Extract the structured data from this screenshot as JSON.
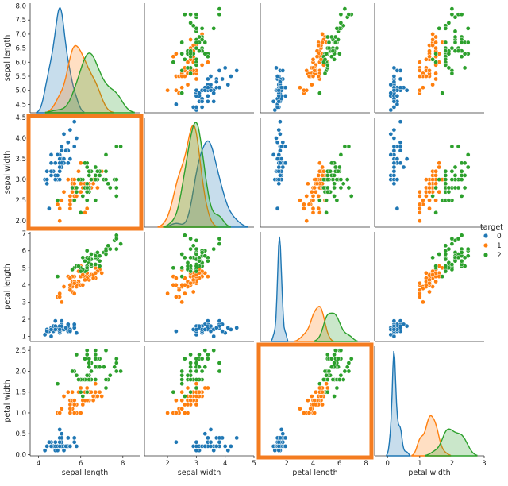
{
  "chart_data": {
    "type": "scatter",
    "subtype": "pairplot",
    "variables": [
      "sepal length",
      "sepal width",
      "petal length",
      "petal width"
    ],
    "diagonal": "kde",
    "legend": {
      "title": "target",
      "placement": "right",
      "entries": [
        {
          "label": "0",
          "color": "#1f77b4"
        },
        {
          "label": "1",
          "color": "#ff7f0e"
        },
        {
          "label": "2",
          "color": "#2ca02c"
        }
      ]
    },
    "axes": {
      "sepal length": {
        "range": [
          4.2,
          8.1
        ],
        "ticks": [
          "4.5",
          "5.0",
          "5.5",
          "6.0",
          "6.5",
          "7.0",
          "7.5",
          "8.0"
        ],
        "xticks": [
          "4",
          "6",
          "8"
        ],
        "xrange": [
          3.6,
          8.8
        ]
      },
      "sepal width": {
        "range": [
          1.85,
          4.5
        ],
        "ticks": [
          "2.0",
          "2.5",
          "3.0",
          "3.5",
          "4.0",
          "4.5"
        ],
        "xticks": [
          "2",
          "3",
          "4",
          "5"
        ],
        "xrange": [
          1.2,
          5.0
        ]
      },
      "petal length": {
        "range": [
          0.7,
          7.1
        ],
        "ticks": [
          "1",
          "2",
          "3",
          "4",
          "5",
          "6",
          "7"
        ],
        "xticks": [
          "2",
          "4",
          "6",
          "8"
        ],
        "xrange": [
          0.0,
          8.3
        ]
      },
      "petal width": {
        "range": [
          -0.03,
          2.6
        ],
        "ticks": [
          "0.0",
          "0.5",
          "1.0",
          "1.5",
          "2.0",
          "2.5"
        ],
        "xticks": [
          "0",
          "1",
          "2",
          "3"
        ],
        "xrange": [
          -0.4,
          3.0
        ]
      }
    },
    "highlighted_panels": [
      {
        "row": "sepal width",
        "col": "sepal length",
        "color": "#f47c20"
      },
      {
        "row": "petal width",
        "col": "petal length",
        "color": "#f47c20"
      }
    ],
    "series": [
      {
        "name": "0",
        "color": "#1f77b4",
        "points": [
          [
            5.1,
            3.5,
            1.4,
            0.2
          ],
          [
            4.9,
            3.0,
            1.4,
            0.2
          ],
          [
            4.7,
            3.2,
            1.3,
            0.2
          ],
          [
            4.6,
            3.1,
            1.5,
            0.2
          ],
          [
            5.0,
            3.6,
            1.4,
            0.2
          ],
          [
            5.4,
            3.9,
            1.7,
            0.4
          ],
          [
            4.6,
            3.4,
            1.4,
            0.3
          ],
          [
            5.0,
            3.4,
            1.5,
            0.2
          ],
          [
            4.4,
            2.9,
            1.4,
            0.2
          ],
          [
            4.9,
            3.1,
            1.5,
            0.1
          ],
          [
            5.4,
            3.7,
            1.5,
            0.2
          ],
          [
            4.8,
            3.4,
            1.6,
            0.2
          ],
          [
            4.8,
            3.0,
            1.4,
            0.1
          ],
          [
            4.3,
            3.0,
            1.1,
            0.1
          ],
          [
            5.8,
            4.0,
            1.2,
            0.2
          ],
          [
            5.7,
            4.4,
            1.5,
            0.4
          ],
          [
            5.4,
            3.9,
            1.3,
            0.4
          ],
          [
            5.1,
            3.5,
            1.4,
            0.3
          ],
          [
            5.7,
            3.8,
            1.7,
            0.3
          ],
          [
            5.1,
            3.8,
            1.5,
            0.3
          ],
          [
            5.4,
            3.4,
            1.7,
            0.2
          ],
          [
            5.1,
            3.7,
            1.5,
            0.4
          ],
          [
            4.6,
            3.6,
            1.0,
            0.2
          ],
          [
            5.1,
            3.3,
            1.7,
            0.5
          ],
          [
            4.8,
            3.4,
            1.9,
            0.2
          ],
          [
            5.0,
            3.0,
            1.6,
            0.2
          ],
          [
            5.0,
            3.4,
            1.6,
            0.4
          ],
          [
            5.2,
            3.5,
            1.5,
            0.2
          ],
          [
            5.2,
            3.4,
            1.4,
            0.2
          ],
          [
            4.7,
            3.2,
            1.6,
            0.2
          ],
          [
            4.8,
            3.1,
            1.6,
            0.2
          ],
          [
            5.4,
            3.4,
            1.5,
            0.4
          ],
          [
            5.2,
            4.1,
            1.5,
            0.1
          ],
          [
            5.5,
            4.2,
            1.4,
            0.2
          ],
          [
            4.9,
            3.1,
            1.5,
            0.2
          ],
          [
            5.0,
            3.2,
            1.2,
            0.2
          ],
          [
            5.5,
            3.5,
            1.3,
            0.2
          ],
          [
            4.9,
            3.6,
            1.4,
            0.1
          ],
          [
            4.4,
            3.0,
            1.3,
            0.2
          ],
          [
            5.1,
            3.4,
            1.5,
            0.2
          ],
          [
            5.0,
            3.5,
            1.3,
            0.3
          ],
          [
            4.5,
            2.3,
            1.3,
            0.3
          ],
          [
            4.4,
            3.2,
            1.3,
            0.2
          ],
          [
            5.0,
            3.5,
            1.6,
            0.6
          ],
          [
            5.1,
            3.8,
            1.9,
            0.4
          ],
          [
            4.8,
            3.0,
            1.4,
            0.3
          ],
          [
            5.1,
            3.8,
            1.6,
            0.2
          ],
          [
            4.6,
            3.2,
            1.4,
            0.2
          ],
          [
            5.3,
            3.7,
            1.5,
            0.2
          ],
          [
            5.0,
            3.3,
            1.4,
            0.2
          ]
        ]
      },
      {
        "name": "1",
        "color": "#ff7f0e",
        "points": [
          [
            7.0,
            3.2,
            4.7,
            1.4
          ],
          [
            6.4,
            3.2,
            4.5,
            1.5
          ],
          [
            6.9,
            3.1,
            4.9,
            1.5
          ],
          [
            5.5,
            2.3,
            4.0,
            1.3
          ],
          [
            6.5,
            2.8,
            4.6,
            1.5
          ],
          [
            5.7,
            2.8,
            4.5,
            1.3
          ],
          [
            6.3,
            3.3,
            4.7,
            1.6
          ],
          [
            4.9,
            2.4,
            3.3,
            1.0
          ],
          [
            6.6,
            2.9,
            4.6,
            1.3
          ],
          [
            5.2,
            2.7,
            3.9,
            1.4
          ],
          [
            5.0,
            2.0,
            3.5,
            1.0
          ],
          [
            5.9,
            3.0,
            4.2,
            1.5
          ],
          [
            6.0,
            2.2,
            4.0,
            1.0
          ],
          [
            6.1,
            2.9,
            4.7,
            1.4
          ],
          [
            5.6,
            2.9,
            3.6,
            1.3
          ],
          [
            6.7,
            3.1,
            4.4,
            1.4
          ],
          [
            5.6,
            3.0,
            4.5,
            1.5
          ],
          [
            5.8,
            2.7,
            4.1,
            1.0
          ],
          [
            6.2,
            2.2,
            4.5,
            1.5
          ],
          [
            5.6,
            2.5,
            3.9,
            1.1
          ],
          [
            5.9,
            3.2,
            4.8,
            1.8
          ],
          [
            6.1,
            2.8,
            4.0,
            1.3
          ],
          [
            6.3,
            2.5,
            4.9,
            1.5
          ],
          [
            6.1,
            2.8,
            4.7,
            1.2
          ],
          [
            6.4,
            2.9,
            4.3,
            1.3
          ],
          [
            6.6,
            3.0,
            4.4,
            1.4
          ],
          [
            6.8,
            2.8,
            4.8,
            1.4
          ],
          [
            6.7,
            3.0,
            5.0,
            1.7
          ],
          [
            6.0,
            2.9,
            4.5,
            1.5
          ],
          [
            5.7,
            2.6,
            3.5,
            1.0
          ],
          [
            5.5,
            2.4,
            3.8,
            1.1
          ],
          [
            5.5,
            2.4,
            3.7,
            1.0
          ],
          [
            5.8,
            2.7,
            3.9,
            1.2
          ],
          [
            6.0,
            2.7,
            5.1,
            1.6
          ],
          [
            5.4,
            3.0,
            4.5,
            1.5
          ],
          [
            6.0,
            3.4,
            4.5,
            1.6
          ],
          [
            6.7,
            3.1,
            4.7,
            1.5
          ],
          [
            6.3,
            2.3,
            4.4,
            1.3
          ],
          [
            5.6,
            3.0,
            4.1,
            1.3
          ],
          [
            5.5,
            2.5,
            4.0,
            1.3
          ],
          [
            5.5,
            2.6,
            4.4,
            1.2
          ],
          [
            6.1,
            3.0,
            4.6,
            1.4
          ],
          [
            5.8,
            2.6,
            4.0,
            1.2
          ],
          [
            5.0,
            2.3,
            3.3,
            1.0
          ],
          [
            5.6,
            2.7,
            4.2,
            1.3
          ],
          [
            5.7,
            3.0,
            4.2,
            1.2
          ],
          [
            5.7,
            2.9,
            4.2,
            1.3
          ],
          [
            6.2,
            2.9,
            4.3,
            1.3
          ],
          [
            5.1,
            2.5,
            3.0,
            1.1
          ],
          [
            5.7,
            2.8,
            4.1,
            1.3
          ]
        ]
      },
      {
        "name": "2",
        "color": "#2ca02c",
        "points": [
          [
            6.3,
            3.3,
            6.0,
            2.5
          ],
          [
            5.8,
            2.7,
            5.1,
            1.9
          ],
          [
            7.1,
            3.0,
            5.9,
            2.1
          ],
          [
            6.3,
            2.9,
            5.6,
            1.8
          ],
          [
            6.5,
            3.0,
            5.8,
            2.2
          ],
          [
            7.6,
            3.0,
            6.6,
            2.1
          ],
          [
            4.9,
            2.5,
            4.5,
            1.7
          ],
          [
            7.3,
            2.9,
            6.3,
            1.8
          ],
          [
            6.7,
            2.5,
            5.8,
            1.8
          ],
          [
            7.2,
            3.6,
            6.1,
            2.5
          ],
          [
            6.5,
            3.2,
            5.1,
            2.0
          ],
          [
            6.4,
            2.7,
            5.3,
            1.9
          ],
          [
            6.8,
            3.0,
            5.5,
            2.1
          ],
          [
            5.7,
            2.5,
            5.0,
            2.0
          ],
          [
            5.8,
            2.8,
            5.1,
            2.4
          ],
          [
            6.4,
            3.2,
            5.3,
            2.3
          ],
          [
            6.5,
            3.0,
            5.5,
            1.8
          ],
          [
            7.7,
            3.8,
            6.7,
            2.2
          ],
          [
            7.7,
            2.6,
            6.9,
            2.3
          ],
          [
            6.0,
            2.2,
            5.0,
            1.5
          ],
          [
            6.9,
            3.2,
            5.7,
            2.3
          ],
          [
            5.6,
            2.8,
            4.9,
            2.0
          ],
          [
            7.7,
            2.8,
            6.7,
            2.0
          ],
          [
            6.3,
            2.7,
            4.9,
            1.8
          ],
          [
            6.7,
            3.3,
            5.7,
            2.1
          ],
          [
            7.2,
            3.2,
            6.0,
            1.8
          ],
          [
            6.2,
            2.8,
            4.8,
            1.8
          ],
          [
            6.1,
            3.0,
            4.9,
            1.8
          ],
          [
            6.4,
            2.8,
            5.6,
            2.1
          ],
          [
            7.2,
            3.0,
            5.8,
            1.6
          ],
          [
            7.4,
            2.8,
            6.1,
            1.9
          ],
          [
            7.9,
            3.8,
            6.4,
            2.0
          ],
          [
            6.4,
            2.8,
            5.6,
            2.2
          ],
          [
            6.3,
            2.8,
            5.1,
            1.5
          ],
          [
            6.1,
            2.6,
            5.6,
            1.4
          ],
          [
            7.7,
            3.0,
            6.1,
            2.3
          ],
          [
            6.3,
            3.4,
            5.6,
            2.4
          ],
          [
            6.4,
            3.1,
            5.5,
            1.8
          ],
          [
            6.0,
            3.0,
            4.8,
            1.8
          ],
          [
            6.9,
            3.1,
            5.4,
            2.1
          ],
          [
            6.7,
            3.1,
            5.6,
            2.4
          ],
          [
            6.9,
            3.1,
            5.1,
            2.3
          ],
          [
            5.8,
            2.7,
            5.1,
            1.9
          ],
          [
            6.8,
            3.2,
            5.9,
            2.3
          ],
          [
            6.7,
            3.3,
            5.7,
            2.5
          ],
          [
            6.7,
            3.0,
            5.2,
            2.3
          ],
          [
            6.3,
            2.5,
            5.0,
            1.9
          ],
          [
            6.5,
            3.0,
            5.2,
            2.0
          ],
          [
            6.2,
            3.4,
            5.4,
            2.3
          ],
          [
            5.9,
            3.0,
            5.1,
            1.8
          ]
        ]
      }
    ]
  }
}
